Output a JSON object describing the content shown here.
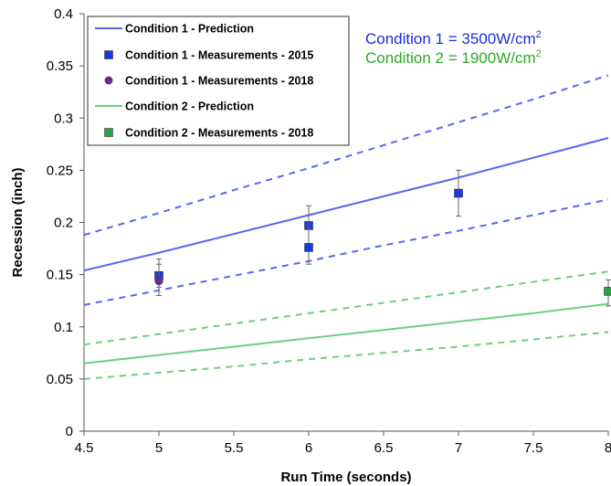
{
  "chart_data": {
    "type": "scatter",
    "xlabel": "Run Time (seconds)",
    "ylabel": "Recession (inch)",
    "xlim": [
      4.5,
      8
    ],
    "ylim": [
      0,
      0.4
    ],
    "x_ticks": [
      4.5,
      5,
      5.5,
      6,
      6.5,
      7,
      7.5,
      8
    ],
    "x_tick_labels": [
      "4.5",
      "5",
      "5.5",
      "6",
      "6.5",
      "7",
      "7.5",
      "8"
    ],
    "y_ticks": [
      0,
      0.05,
      0.1,
      0.15,
      0.2,
      0.25,
      0.3,
      0.35,
      0.4
    ],
    "y_tick_labels": [
      "0",
      "0.05",
      "0.1",
      "0.15",
      "0.2",
      "0.25",
      "0.3",
      "0.35",
      "0.4"
    ],
    "grid": false,
    "legend_position": "top-left",
    "series": [
      {
        "name": "Condition 1 - Prediction",
        "kind": "line",
        "color": "#5468f5",
        "x": [
          4.5,
          5,
          5.5,
          6,
          6.5,
          7,
          7.5,
          8
        ],
        "y": [
          0.154,
          0.171,
          0.189,
          0.207,
          0.225,
          0.243,
          0.262,
          0.281
        ]
      },
      {
        "name": "Condition 1 - Measurements - 2015",
        "kind": "marker",
        "marker": "square",
        "color": "#1c3ae0",
        "x": [
          5,
          6,
          6,
          7
        ],
        "y": [
          0.149,
          0.197,
          0.176,
          0.228
        ],
        "error_high": [
          0.16,
          0.216,
          0.207,
          0.25
        ],
        "error_low": [
          0.138,
          0.178,
          0.16,
          0.206
        ]
      },
      {
        "name": "Condition 1 - Measurements - 2018",
        "kind": "marker",
        "marker": "circle",
        "color": "#6b2b8f",
        "x": [
          5
        ],
        "y": [
          0.144
        ],
        "error_high": [
          0.165
        ],
        "error_low": [
          0.13
        ]
      },
      {
        "name": "Condition 2 - Prediction",
        "kind": "line",
        "color": "#6fcf7f",
        "x": [
          4.5,
          5,
          5.5,
          6,
          6.5,
          7,
          7.5,
          8
        ],
        "y": [
          0.065,
          0.073,
          0.081,
          0.089,
          0.097,
          0.105,
          0.113,
          0.122
        ]
      },
      {
        "name": "Condition 2 - Measurements - 2018",
        "kind": "marker",
        "marker": "square",
        "color": "#2ea043",
        "x": [
          8
        ],
        "y": [
          0.134
        ],
        "error_high": [
          0.145
        ],
        "error_low": [
          0.12
        ]
      }
    ],
    "bands": [
      {
        "color": "#5468f5",
        "x": [
          4.5,
          5,
          5.5,
          6,
          6.5,
          7,
          7.5,
          8
        ],
        "upper": [
          0.188,
          0.209,
          0.231,
          0.252,
          0.274,
          0.296,
          0.318,
          0.341
        ],
        "lower": [
          0.121,
          0.135,
          0.149,
          0.163,
          0.178,
          0.192,
          0.207,
          0.222
        ]
      },
      {
        "color": "#6fcf7f",
        "x": [
          4.5,
          5,
          5.5,
          6,
          6.5,
          7,
          7.5,
          8
        ],
        "upper": [
          0.083,
          0.093,
          0.103,
          0.113,
          0.123,
          0.133,
          0.143,
          0.153
        ],
        "lower": [
          0.05,
          0.056,
          0.062,
          0.069,
          0.075,
          0.081,
          0.088,
          0.095
        ]
      }
    ],
    "annotations": [
      {
        "text": "Condition 1 = 3500W/cm",
        "sup": "2",
        "color": "#1a2fd6"
      },
      {
        "text": "Condition 2 = 1900W/cm",
        "sup": "2",
        "color": "#2ea82a"
      }
    ]
  }
}
